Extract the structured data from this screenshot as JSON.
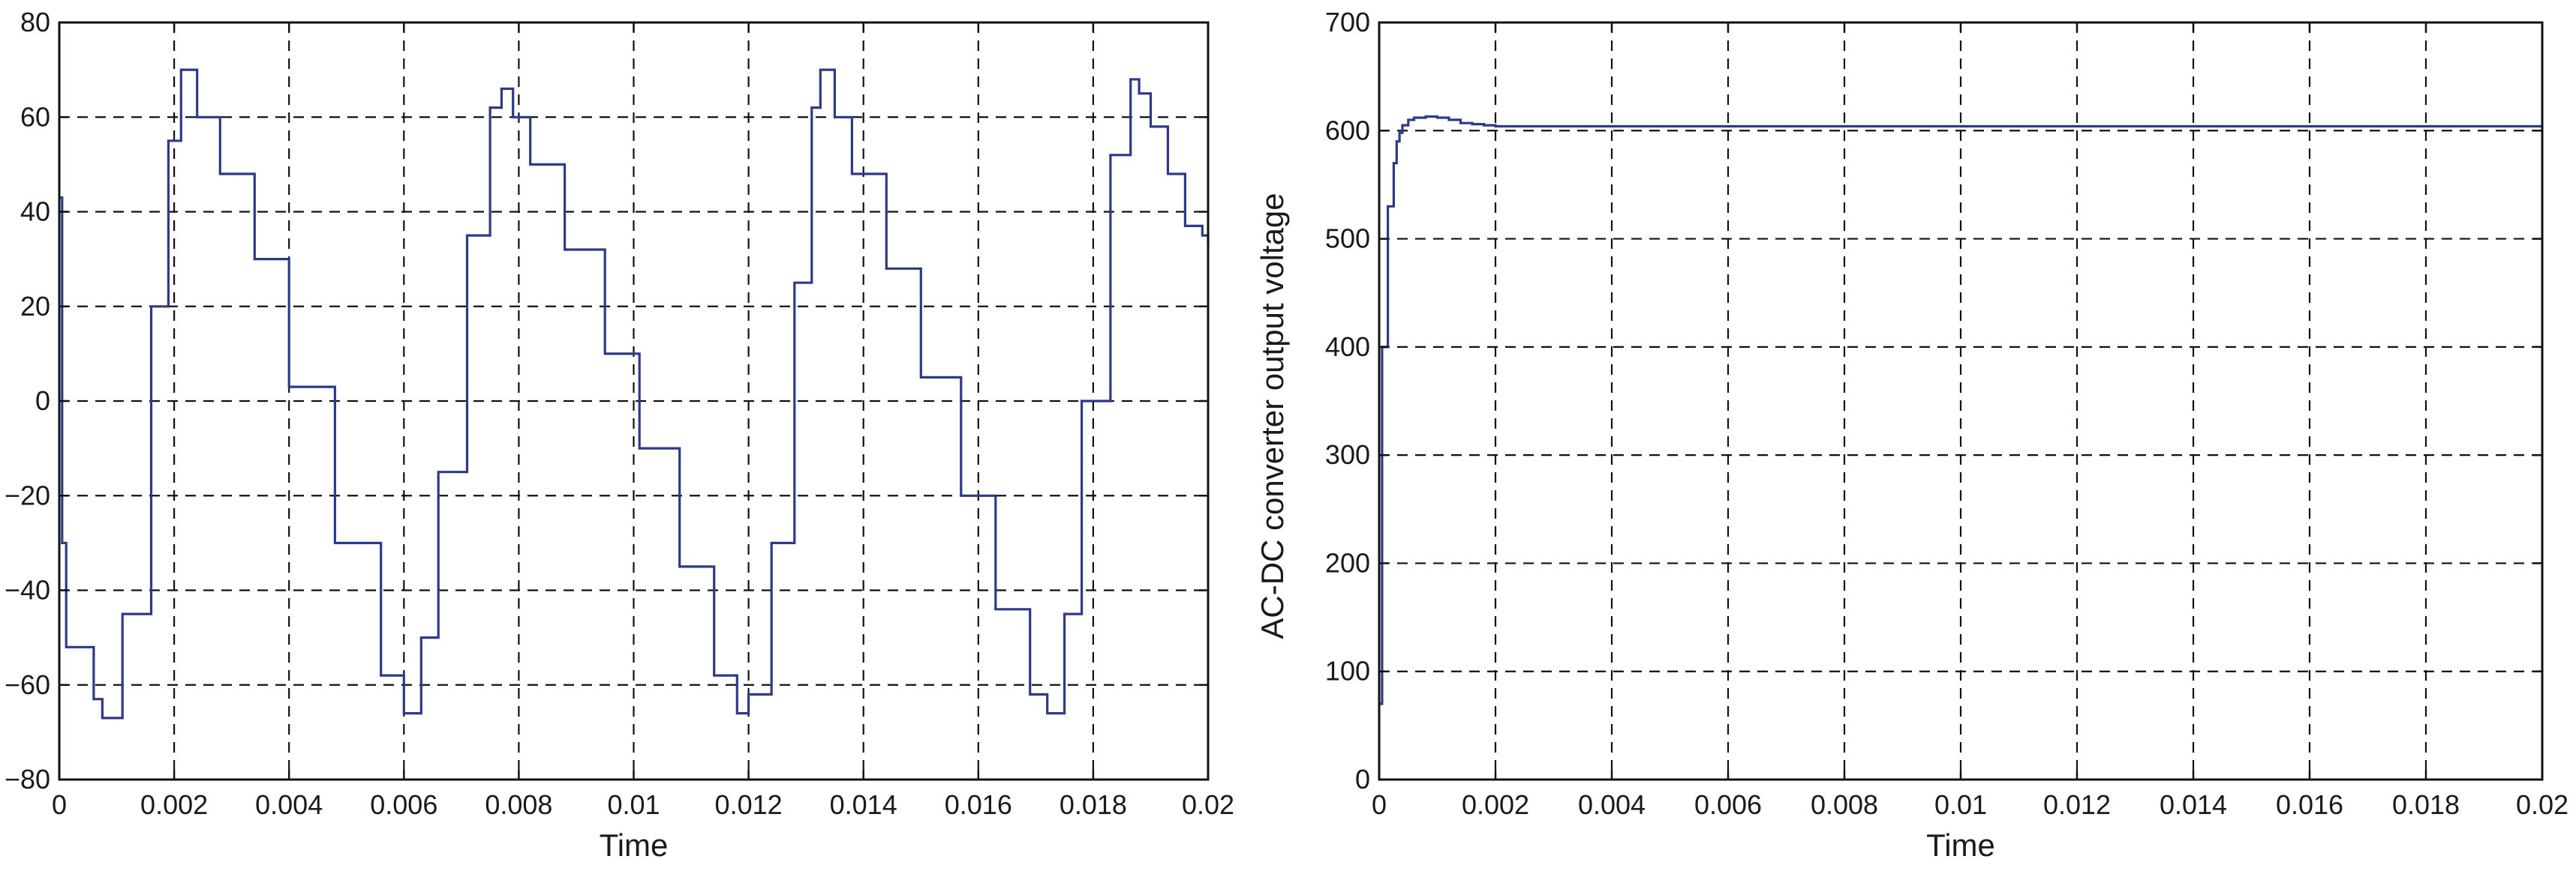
{
  "chart_data": [
    {
      "type": "line",
      "title": "",
      "xlabel": "Time",
      "ylabel": "",
      "xlim": [
        0,
        0.02
      ],
      "ylim": [
        -80,
        80
      ],
      "xticks": [
        0,
        0.002,
        0.004,
        0.006,
        0.008,
        0.01,
        0.012,
        0.014,
        0.016,
        0.018,
        0.02
      ],
      "xtick_labels": [
        "0",
        "0.002",
        "0.004",
        "0.006",
        "0.008",
        "0.01",
        "0.012",
        "0.014",
        "0.016",
        "0.018",
        "0.02"
      ],
      "yticks": [
        -80,
        -60,
        -40,
        -20,
        0,
        20,
        40,
        60,
        80
      ],
      "ytick_labels": [
        "−80",
        "−60",
        "−40",
        "−20",
        "0",
        "20",
        "40",
        "60",
        "80"
      ],
      "grid": true,
      "step": true,
      "color": "#2e3a87",
      "series": [
        {
          "x": [
            0,
            5e-05,
            0.00012,
            0.0006,
            0.00075,
            0.0011,
            0.0016,
            0.0019,
            0.00212,
            0.0024,
            0.0028,
            0.0034,
            0.004,
            0.0048,
            0.0056,
            0.006,
            0.00615,
            0.0063,
            0.0066,
            0.0071,
            0.0075,
            0.0077,
            0.0079,
            0.0082,
            0.0088,
            0.0095,
            0.0101,
            0.0108,
            0.0114,
            0.0118,
            0.012,
            0.0124,
            0.0128,
            0.0131,
            0.01325,
            0.0135,
            0.0138,
            0.0144,
            0.015,
            0.0157,
            0.0163,
            0.0169,
            0.0172,
            0.0175,
            0.0178,
            0.0183,
            0.01865,
            0.0188,
            0.019,
            0.0193,
            0.0196,
            0.0199,
            0.02
          ],
          "y": [
            43,
            -30,
            -52,
            -63,
            -67,
            -45,
            20,
            55,
            70,
            60,
            48,
            30,
            3,
            -30,
            -58,
            -66,
            -66,
            -50,
            -15,
            35,
            62,
            66,
            60,
            50,
            32,
            10,
            -10,
            -35,
            -58,
            -66,
            -62,
            -30,
            25,
            62,
            70,
            60,
            48,
            28,
            5,
            -20,
            -44,
            -62,
            -66,
            -45,
            0,
            52,
            68,
            65,
            58,
            48,
            37,
            35,
            33
          ]
        }
      ]
    },
    {
      "type": "line",
      "title": "",
      "xlabel": "Time",
      "ylabel": "AC-DC converter output voltage",
      "xlim": [
        0,
        0.02
      ],
      "ylim": [
        0,
        700
      ],
      "xticks": [
        0,
        0.002,
        0.004,
        0.006,
        0.008,
        0.01,
        0.012,
        0.014,
        0.016,
        0.018,
        0.02
      ],
      "xtick_labels": [
        "0",
        "0.002",
        "0.004",
        "0.006",
        "0.008",
        "0.01",
        "0.012",
        "0.014",
        "0.016",
        "0.018",
        "0.02"
      ],
      "yticks": [
        0,
        100,
        200,
        300,
        400,
        500,
        600,
        700
      ],
      "ytick_labels": [
        "0",
        "100",
        "200",
        "300",
        "400",
        "500",
        "600",
        "700"
      ],
      "grid": true,
      "step": true,
      "color": "#2e3a87",
      "series": [
        {
          "x": [
            0,
            5e-05,
            0.0001,
            0.00015,
            0.0002,
            0.00025,
            0.0003,
            0.00035,
            0.0004,
            0.0005,
            0.0006,
            0.0008,
            0.001,
            0.0012,
            0.0014,
            0.0016,
            0.0018,
            0.002,
            0.0025,
            0.003,
            0.0035,
            0.004,
            0.005,
            0.006,
            0.007,
            0.008,
            0.009,
            0.01,
            0.011,
            0.012,
            0.013,
            0.014,
            0.015,
            0.016,
            0.017,
            0.018,
            0.019,
            0.02
          ],
          "y": [
            70,
            400,
            400,
            530,
            530,
            570,
            590,
            598,
            605,
            610,
            612,
            613,
            612,
            610,
            607,
            606,
            605,
            604,
            604,
            604,
            604,
            604,
            604,
            604,
            604,
            604,
            604,
            604,
            604,
            604,
            604,
            604,
            604,
            604,
            604,
            604,
            604,
            604
          ]
        }
      ]
    }
  ]
}
